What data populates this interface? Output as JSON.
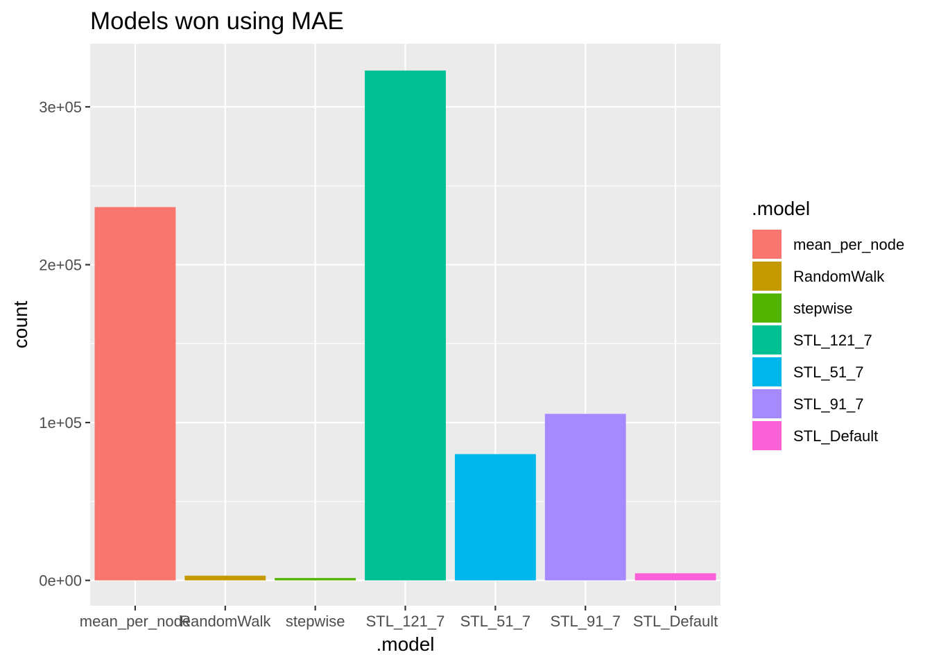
{
  "chart_data": {
    "type": "bar",
    "title": "Models won using MAE",
    "xlabel": ".model",
    "ylabel": "count",
    "categories": [
      "mean_per_node",
      "RandomWalk",
      "stepwise",
      "STL_121_7",
      "STL_51_7",
      "STL_91_7",
      "STL_Default"
    ],
    "values": [
      236500,
      3000,
      1500,
      323000,
      80000,
      105500,
      4500
    ],
    "colors": [
      "#F8766D",
      "#C49A00",
      "#53B400",
      "#00C094",
      "#00B6EB",
      "#A58AFF",
      "#FB61D7"
    ],
    "ylim": [
      -16000,
      340000
    ],
    "yticks": [
      0,
      100000,
      200000,
      300000
    ],
    "ytick_labels": [
      "0e+00",
      "1e+05",
      "2e+05",
      "3e+05"
    ],
    "y_minor_ticks": [
      50000,
      150000,
      250000
    ],
    "grid": true,
    "panel_background": "#EBEBEB",
    "legend": {
      "title": ".model",
      "position": "right",
      "entries": [
        "mean_per_node",
        "RandomWalk",
        "stepwise",
        "STL_121_7",
        "STL_51_7",
        "STL_91_7",
        "STL_Default"
      ]
    }
  }
}
